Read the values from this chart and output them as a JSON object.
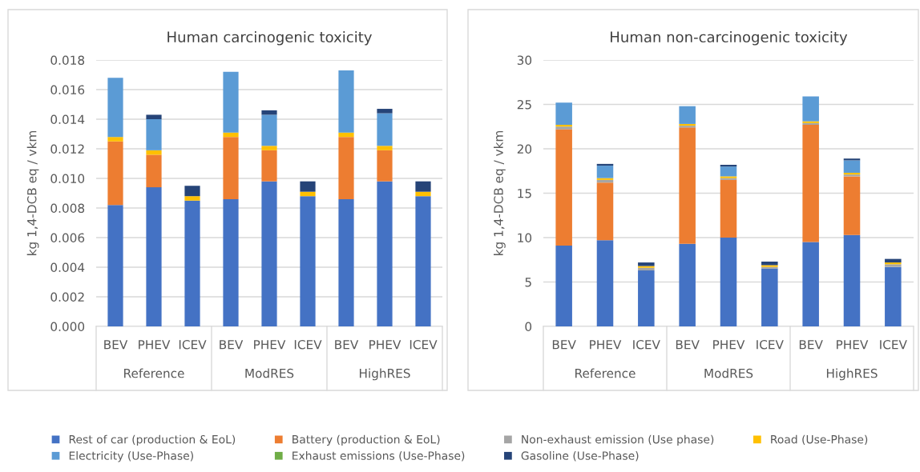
{
  "chart_data": [
    {
      "type": "bar",
      "stacked": true,
      "title": "Human carcinogenic toxicity",
      "ylabel": "kg 1,4-DCB eq / vkm",
      "categories": [
        "BEV",
        "PHEV",
        "ICEV",
        "BEV",
        "PHEV",
        "ICEV",
        "BEV",
        "PHEV",
        "ICEV"
      ],
      "annotations": [
        "Reference",
        "ModRES",
        "HighRES"
      ],
      "ylim": [
        0,
        0.018
      ],
      "yticks": [
        {
          "value": 0,
          "label": "0.000"
        },
        {
          "value": 0.002,
          "label": "0.002"
        },
        {
          "value": 0.004,
          "label": "0.004"
        },
        {
          "value": 0.006,
          "label": "0.006"
        },
        {
          "value": 0.008,
          "label": "0.008"
        },
        {
          "value": 0.01,
          "label": "0.010"
        },
        {
          "value": 0.012,
          "label": "0.012"
        },
        {
          "value": 0.014,
          "label": "0.014"
        },
        {
          "value": 0.016,
          "label": "0.016"
        },
        {
          "value": 0.018,
          "label": "0.018"
        }
      ],
      "grid": "y",
      "legend": "bottom",
      "series": [
        {
          "name": "Rest of car (production & EoL)",
          "color": "#4472c4",
          "values": [
            0.0082,
            0.0094,
            0.0085,
            0.0086,
            0.0098,
            0.0088,
            0.0086,
            0.0098,
            0.0088
          ]
        },
        {
          "name": "Battery (production & EoL)",
          "color": "#ed7d31",
          "values": [
            0.0043,
            0.0022,
            0,
            0.0042,
            0.0021,
            0,
            0.0042,
            0.0021,
            0
          ]
        },
        {
          "name": "Non-exhaust emission (Use phase)",
          "color": "#a5a5a5",
          "values": [
            0,
            0,
            0,
            0,
            0,
            0,
            0,
            0,
            0
          ]
        },
        {
          "name": "Road (Use-Phase)",
          "color": "#ffc000",
          "values": [
            0.0003,
            0.0003,
            0.0003,
            0.0003,
            0.0003,
            0.0003,
            0.0003,
            0.0003,
            0.0003
          ]
        },
        {
          "name": "Electricity (Use-Phase)",
          "color": "#5b9bd5",
          "values": [
            0.004,
            0.0021,
            0,
            0.0041,
            0.0021,
            0,
            0.0042,
            0.0022,
            0
          ]
        },
        {
          "name": "Exhaust emissions (Use-Phase)",
          "color": "#70ad47",
          "values": [
            0,
            0,
            0,
            0,
            0,
            0,
            0,
            0,
            0
          ]
        },
        {
          "name": "Gasoline (Use-Phase)",
          "color": "#264478",
          "values": [
            0,
            0.0003,
            0.0007,
            0,
            0.0003,
            0.0007,
            0,
            0.0003,
            0.0007
          ]
        }
      ]
    },
    {
      "type": "bar",
      "stacked": true,
      "title": "Human non-carcinogenic toxicity",
      "ylabel": "kg 1,4-DCB eq / vkm",
      "categories": [
        "BEV",
        "PHEV",
        "ICEV",
        "BEV",
        "PHEV",
        "ICEV",
        "BEV",
        "PHEV",
        "ICEV"
      ],
      "annotations": [
        "Reference",
        "ModRES",
        "HighRES"
      ],
      "ylim": [
        0,
        30
      ],
      "yticks": [
        0,
        5,
        10,
        15,
        20,
        25,
        30
      ],
      "grid": "y",
      "series": [
        {
          "color": "#4472c4",
          "values": [
            9.1,
            9.7,
            6.3,
            9.3,
            10.0,
            6.5,
            9.5,
            10.3,
            6.7
          ]
        },
        {
          "color": "#ed7d31",
          "values": [
            13.1,
            6.5,
            0,
            13.1,
            6.5,
            0,
            13.2,
            6.6,
            0
          ]
        },
        {
          "color": "#a5a5a5",
          "values": [
            0.3,
            0.3,
            0.3,
            0.2,
            0.2,
            0.2,
            0.2,
            0.2,
            0.3
          ]
        },
        {
          "color": "#ffc000",
          "values": [
            0.2,
            0.2,
            0.2,
            0.2,
            0.2,
            0.2,
            0.2,
            0.2,
            0.2
          ]
        },
        {
          "color": "#5b9bd5",
          "values": [
            2.5,
            1.4,
            0,
            2.0,
            1.1,
            0,
            2.8,
            1.4,
            0
          ]
        },
        {
          "color": "#70ad47",
          "values": [
            0,
            0,
            0,
            0,
            0,
            0,
            0,
            0,
            0
          ]
        },
        {
          "color": "#264478",
          "values": [
            0,
            0.2,
            0.4,
            0,
            0.2,
            0.4,
            0,
            0.2,
            0.4
          ]
        }
      ]
    }
  ]
}
